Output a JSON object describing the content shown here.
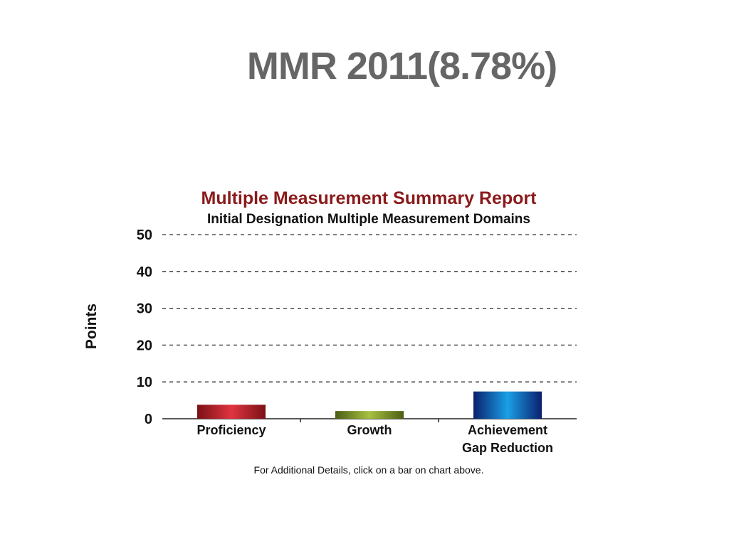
{
  "slide": {
    "title": "MMR 2011(8.78%)"
  },
  "chart_data": {
    "type": "bar",
    "title": "Multiple Measurement Summary Report",
    "subtitle": "Initial Designation Multiple Measurement Domains",
    "ylabel": "Points",
    "xlabel": "",
    "ylim": [
      0,
      50
    ],
    "yticks": [
      0,
      10,
      20,
      30,
      40,
      50
    ],
    "grid": true,
    "categories": [
      [
        "Proficiency"
      ],
      [
        "Growth"
      ],
      [
        "Achievement",
        "Gap Reduction"
      ]
    ],
    "values": [
      3.8,
      2.1,
      7.4
    ],
    "colors": [
      "#c8232c",
      "#7f9a2a",
      "#1a5fb0"
    ],
    "footnote": "For Additional Details, click on a bar on chart above."
  }
}
